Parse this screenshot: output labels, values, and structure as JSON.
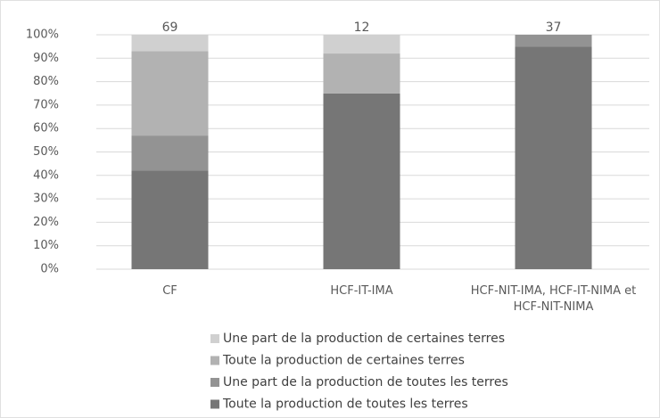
{
  "chart_data": {
    "type": "stacked_bar_100",
    "categories": [
      "CF",
      "HCF-IT-IMA",
      "HCF-NIT-IMA, HCF-IT-NIMA et HCF-NIT-NIMA"
    ],
    "totals": [
      69,
      12,
      37
    ],
    "series": [
      {
        "name": "Toute la production de toutes les terres",
        "color": "#767676",
        "values": [
          42,
          75,
          95
        ]
      },
      {
        "name": "Une part de la production de toutes les terres",
        "color": "#939393",
        "values": [
          15,
          0,
          5
        ]
      },
      {
        "name": "Toute la production de certaines terres",
        "color": "#b2b2b2",
        "values": [
          36,
          17,
          0
        ]
      },
      {
        "name": "Une part de la production de certaines terres",
        "color": "#d0d0d0",
        "values": [
          7,
          8,
          0
        ]
      }
    ],
    "ylim": [
      0,
      100
    ],
    "yticks": [
      {
        "value": 0,
        "label": "0%"
      },
      {
        "value": 10,
        "label": "10%"
      },
      {
        "value": 20,
        "label": "20%"
      },
      {
        "value": 30,
        "label": "30%"
      },
      {
        "value": 40,
        "label": "40%"
      },
      {
        "value": 50,
        "label": "50%"
      },
      {
        "value": 60,
        "label": "60%"
      },
      {
        "value": 70,
        "label": "70%"
      },
      {
        "value": 80,
        "label": "80%"
      },
      {
        "value": 90,
        "label": "90%"
      },
      {
        "value": 100,
        "label": "100%"
      }
    ],
    "grid": true
  }
}
